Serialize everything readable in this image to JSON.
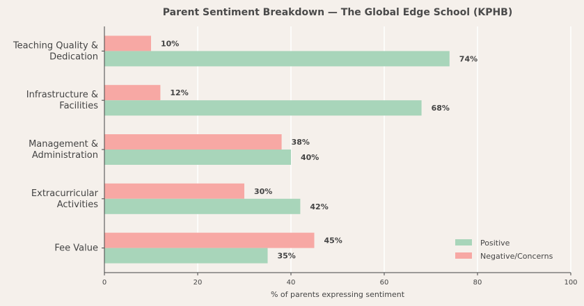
{
  "chart_data": {
    "type": "bar",
    "orientation": "horizontal",
    "title": "Parent Sentiment Breakdown — The Global Edge School (KPHB)",
    "xlabel": "% of parents expressing sentiment",
    "ylabel": "",
    "xlim": [
      0,
      100
    ],
    "xticks": [
      0,
      20,
      40,
      60,
      80,
      100
    ],
    "grid": "vertical",
    "legend_position": "bottom-right",
    "categories": [
      [
        "Teaching Quality &",
        "Dedication"
      ],
      [
        "Infrastructure &",
        "Facilities"
      ],
      [
        "Management &",
        "Administration"
      ],
      [
        "Extracurricular",
        "Activities"
      ],
      [
        "Fee Value"
      ]
    ],
    "series": [
      {
        "name": "Positive",
        "color": "#a8d5ba",
        "values": [
          74,
          68,
          40,
          42,
          35
        ],
        "labels": [
          "74%",
          "68%",
          "40%",
          "42%",
          "35%"
        ]
      },
      {
        "name": "Negative/Concerns",
        "color": "#f7a8a4",
        "values": [
          10,
          12,
          38,
          30,
          45
        ],
        "labels": [
          "10%",
          "12%",
          "38%",
          "30%",
          "45%"
        ]
      }
    ]
  }
}
